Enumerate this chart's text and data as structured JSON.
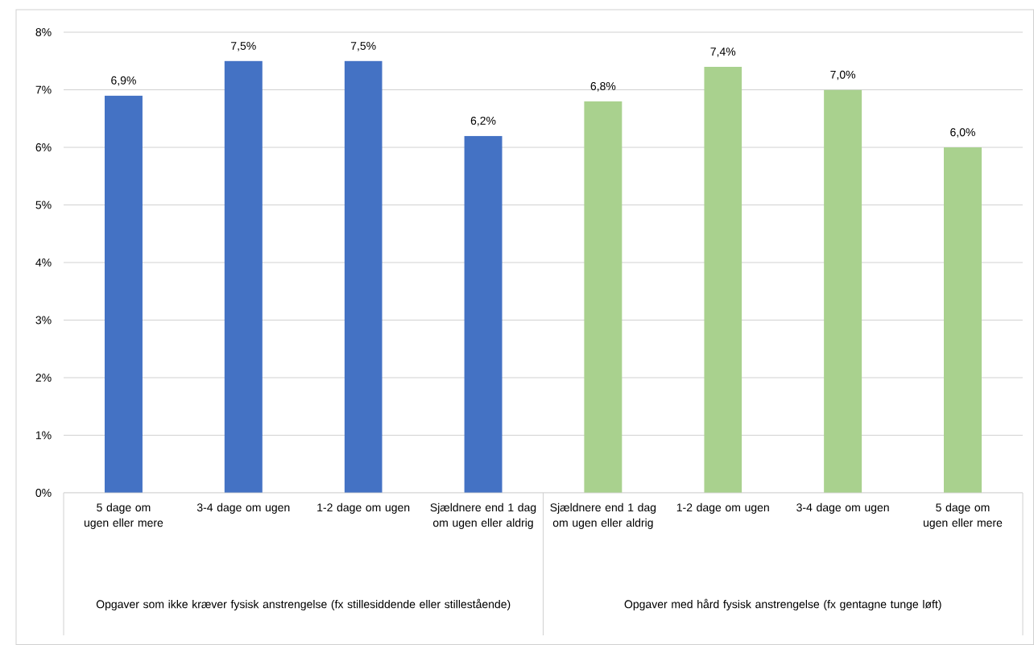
{
  "chart_data": {
    "type": "bar",
    "categories": [
      "5 dage om ugen eller mere",
      "3-4 dage om ugen",
      "1-2 dage om ugen",
      "Sjældnere end 1 dag om ugen eller aldrig",
      "Sjældnere end 1 dag om ugen eller aldrig",
      "1-2 dage om ugen",
      "3-4 dage om ugen",
      "5 dage om ugen eller mere"
    ],
    "values": [
      6.9,
      7.5,
      7.5,
      6.2,
      6.8,
      7.4,
      7.0,
      6.0
    ],
    "colors": [
      "#4472c4",
      "#4472c4",
      "#4472c4",
      "#4472c4",
      "#a9d18e",
      "#a9d18e",
      "#a9d18e",
      "#a9d18e"
    ],
    "value_labels": [
      "6,9%",
      "7,5%",
      "7,5%",
      "6,2%",
      "6,8%",
      "7,4%",
      "7,0%",
      "6,0%"
    ],
    "ylim": [
      0,
      8
    ],
    "yticks": [
      {
        "value": 0,
        "label": "0%"
      },
      {
        "value": 1,
        "label": "1%"
      },
      {
        "value": 2,
        "label": "2%"
      },
      {
        "value": 3,
        "label": "3%"
      },
      {
        "value": 4,
        "label": "4%"
      },
      {
        "value": 5,
        "label": "5%"
      },
      {
        "value": 6,
        "label": "6%"
      },
      {
        "value": 7,
        "label": "7%"
      },
      {
        "value": 8,
        "label": "8%"
      }
    ],
    "grid": "y",
    "annotations": [
      "Opgaver som ikke kræver fysisk anstrengelse (fx stillesiddende eller stillestående)",
      "Opgaver med hård fysisk anstrengelse (fx gentagne tunge løft)"
    ]
  }
}
